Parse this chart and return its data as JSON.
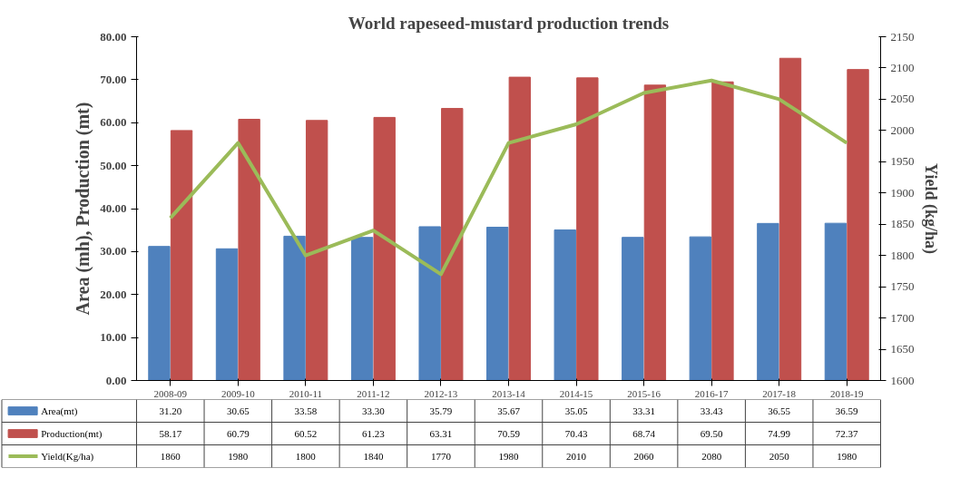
{
  "chart_data": {
    "type": "bar",
    "title": "World rapeseed-mustard production trends",
    "ylabel": "Area (mh), Production (mt)",
    "y2label": "Yield (kg/ha)",
    "categories": [
      "2008-09",
      "2009-10",
      "2010-11",
      "2011-12",
      "2012-13",
      "2013-14",
      "2014-15",
      "2015-16",
      "2016-17",
      "2017-18",
      "2018-19"
    ],
    "series": [
      {
        "name": "Area(mt)",
        "color": "#4f81bd",
        "values": [
          31.2,
          30.65,
          33.58,
          33.3,
          35.79,
          35.67,
          35.05,
          33.31,
          33.43,
          36.55,
          36.59
        ],
        "value_labels": [
          "31.20",
          "30.65",
          "33.58",
          "33.30",
          "35.79",
          "35.67",
          "35.05",
          "33.31",
          "33.43",
          "36.55",
          "36.59"
        ]
      },
      {
        "name": "Production(mt)",
        "color": "#c0504d",
        "values": [
          58.17,
          60.79,
          60.52,
          61.23,
          63.31,
          70.59,
          70.43,
          68.74,
          69.5,
          74.99,
          72.37
        ],
        "value_labels": [
          "58.17",
          "60.79",
          "60.52",
          "61.23",
          "63.31",
          "70.59",
          "70.43",
          "68.74",
          "69.50",
          "74.99",
          "72.37"
        ]
      },
      {
        "name": "Yield(Kg/ha)",
        "type": "line",
        "axis": "y2",
        "color": "#9bbb59",
        "values": [
          1860,
          1980,
          1800,
          1840,
          1770,
          1980,
          2010,
          2060,
          2080,
          2050,
          1980
        ],
        "value_labels": [
          "1860",
          "1980",
          "1800",
          "1840",
          "1770",
          "1980",
          "2010",
          "2060",
          "2080",
          "2050",
          "1980"
        ]
      }
    ],
    "ylim": [
      0,
      80
    ],
    "yticks": [
      {
        "value": 0,
        "label": "0.00"
      },
      {
        "value": 10,
        "label": "10.00"
      },
      {
        "value": 20,
        "label": "20.00"
      },
      {
        "value": 30,
        "label": "30.00"
      },
      {
        "value": 40,
        "label": "40.00"
      },
      {
        "value": 50,
        "label": "50.00"
      },
      {
        "value": 60,
        "label": "60.00"
      },
      {
        "value": 70,
        "label": "70.00"
      },
      {
        "value": 80,
        "label": "80.00"
      }
    ],
    "y2lim": [
      1600,
      2150
    ],
    "y2ticks": [
      1600,
      1650,
      1700,
      1750,
      1800,
      1850,
      1900,
      1950,
      2000,
      2050,
      2100,
      2150
    ],
    "grid": false,
    "legend": "bottom",
    "marker": "none",
    "line_style": "solid"
  }
}
